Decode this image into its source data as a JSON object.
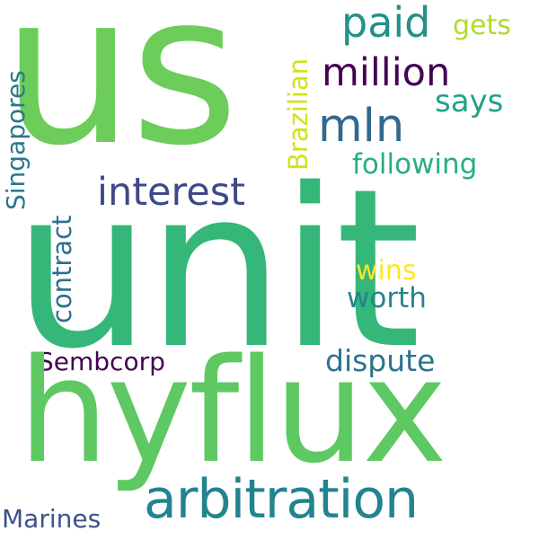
{
  "wordcloud": {
    "background": "#ffffff",
    "words": {
      "us": {
        "text": "us",
        "color": "#6ccd5a"
      },
      "unit": {
        "text": "unit",
        "color": "#35b779"
      },
      "hyflux": {
        "text": "hyflux",
        "color": "#5ec962"
      },
      "arbitration": {
        "text": "arbitration",
        "color": "#22848e"
      },
      "interest": {
        "text": "interest",
        "color": "#3e4989"
      },
      "million": {
        "text": "million",
        "color": "#440154"
      },
      "mln": {
        "text": "mln",
        "color": "#31688e"
      },
      "paid": {
        "text": "paid",
        "color": "#21918c"
      },
      "gets": {
        "text": "gets",
        "color": "#addc30"
      },
      "says": {
        "text": "says",
        "color": "#1fa287"
      },
      "following": {
        "text": "following",
        "color": "#28ae80"
      },
      "wins": {
        "text": "wins",
        "color": "#fde725"
      },
      "worth": {
        "text": "worth",
        "color": "#26828e"
      },
      "dispute": {
        "text": "dispute",
        "color": "#2c728e"
      },
      "sembcorp": {
        "text": "Sembcorp",
        "color": "#440154"
      },
      "marines": {
        "text": "Marines",
        "color": "#3b528b"
      },
      "singapores": {
        "text": "Singapores",
        "color": "#2a788e"
      },
      "contract": {
        "text": "contract",
        "color": "#2d708e"
      },
      "brazilian": {
        "text": "Brazilian",
        "color": "#d2e21b"
      }
    }
  }
}
